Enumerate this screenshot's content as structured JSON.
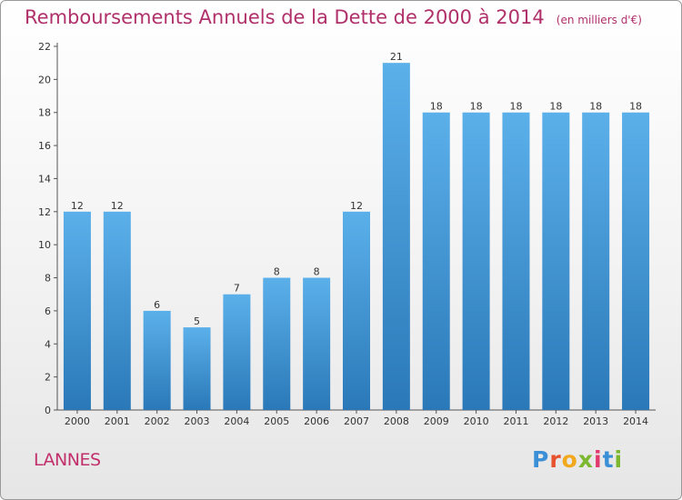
{
  "title": "Remboursements Annuels de la Dette de 2000 à 2014",
  "subtitle": "(en milliers d'€)",
  "commune": "LANNES",
  "logo": {
    "letters": [
      "P",
      "r",
      "o",
      "x",
      "i",
      "t",
      "i"
    ],
    "colors": [
      "#3a8fd6",
      "#e8512d",
      "#f2a81d",
      "#7cb82f",
      "#e23a6e",
      "#3a8fd6",
      "#7cb82f"
    ]
  },
  "colors": {
    "bar_light": "#5bb0ea",
    "bar_dark": "#2a78b8",
    "title": "#b0306a"
  },
  "chart_data": {
    "type": "bar",
    "categories": [
      "2000",
      "2001",
      "2002",
      "2003",
      "2004",
      "2005",
      "2006",
      "2007",
      "2008",
      "2009",
      "2010",
      "2011",
      "2012",
      "2013",
      "2014"
    ],
    "values": [
      12,
      12,
      6,
      5,
      7,
      8,
      8,
      12,
      21,
      18,
      18,
      18,
      18,
      18,
      18
    ],
    "ylim": [
      0,
      22
    ],
    "yticks": [
      0,
      2,
      4,
      6,
      8,
      10,
      12,
      14,
      16,
      18,
      20,
      22
    ],
    "grid": false
  }
}
